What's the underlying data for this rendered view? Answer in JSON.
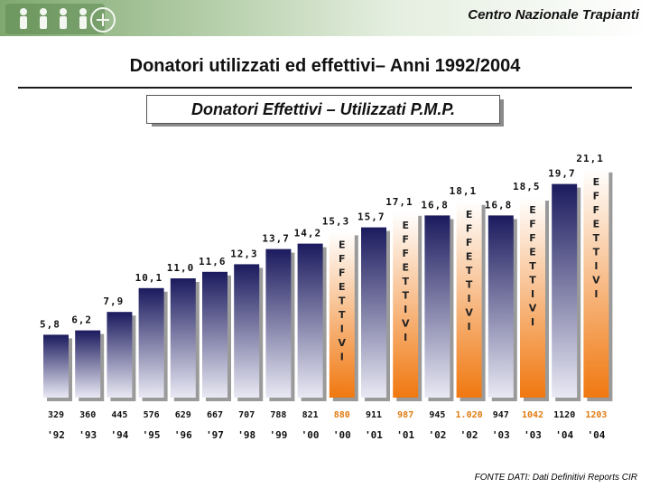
{
  "header": {
    "brand": "Centro Nazionale Trapianti"
  },
  "title": "Donatori utilizzati ed effettivi– Anni 1992/2004",
  "subtitle": "Donatori Effettivi – Utilizzati P.M.P.",
  "footer": {
    "source": "FONTE DATI: Dati Definitivi Reports CIR"
  },
  "colors": {
    "utilizzati_top": "#1b1a5e",
    "utilizzati_bottom": "#e9e9f4",
    "effettivi_top": "#ffffff",
    "effettivi_bottom": "#f07810",
    "highlight": "#e07b10",
    "text": "#111111"
  },
  "chart_data": {
    "type": "bar",
    "title": "Donatori Effettivi – Utilizzati P.M.P.",
    "ylim": [
      0,
      23
    ],
    "effettivi_label": [
      "E",
      "F",
      "F",
      "E",
      "T",
      "T",
      "I",
      "V",
      "I"
    ],
    "bars": [
      {
        "kind": "utilizzati",
        "value_label": "5,8",
        "value": 5.8,
        "count_label": "329",
        "year_label": "'92"
      },
      {
        "kind": "utilizzati",
        "value_label": "6,2",
        "value": 6.2,
        "count_label": "360",
        "year_label": "'93"
      },
      {
        "kind": "utilizzati",
        "value_label": "7,9",
        "value": 7.9,
        "count_label": "445",
        "year_label": "'94"
      },
      {
        "kind": "utilizzati",
        "value_label": "10,1",
        "value": 10.1,
        "count_label": "576",
        "year_label": "'95"
      },
      {
        "kind": "utilizzati",
        "value_label": "11,0",
        "value": 11.0,
        "count_label": "629",
        "year_label": "'96"
      },
      {
        "kind": "utilizzati",
        "value_label": "11,6",
        "value": 11.6,
        "count_label": "667",
        "year_label": "'97"
      },
      {
        "kind": "utilizzati",
        "value_label": "12,3",
        "value": 12.3,
        "count_label": "707",
        "year_label": "'98"
      },
      {
        "kind": "utilizzati",
        "value_label": "13,7",
        "value": 13.7,
        "count_label": "788",
        "year_label": "'99"
      },
      {
        "kind": "utilizzati",
        "value_label": "14,2",
        "value": 14.2,
        "count_label": "821",
        "year_label": "'00"
      },
      {
        "kind": "effettivi",
        "value_label": "15,3",
        "value": 15.3,
        "count_label": "880",
        "year_label": "'00"
      },
      {
        "kind": "utilizzati",
        "value_label": "15,7",
        "value": 15.7,
        "count_label": "911",
        "year_label": "'01"
      },
      {
        "kind": "effettivi",
        "value_label": "17,1",
        "value": 17.1,
        "count_label": "987",
        "year_label": "'01"
      },
      {
        "kind": "utilizzati",
        "value_label": "16,8",
        "value": 16.8,
        "count_label": "945",
        "year_label": "'02"
      },
      {
        "kind": "effettivi",
        "value_label": "18,1",
        "value": 18.1,
        "count_label": "1.020",
        "year_label": "'02"
      },
      {
        "kind": "utilizzati",
        "value_label": "16,8",
        "value": 16.8,
        "count_label": "947",
        "year_label": "'03"
      },
      {
        "kind": "effettivi",
        "value_label": "18,5",
        "value": 18.5,
        "count_label": "1042",
        "year_label": "'03"
      },
      {
        "kind": "utilizzati",
        "value_label": "19,7",
        "value": 19.7,
        "count_label": "1120",
        "year_label": "'04"
      },
      {
        "kind": "effettivi",
        "value_label": "21,1",
        "value": 21.1,
        "count_label": "1203",
        "year_label": "'04"
      }
    ]
  }
}
